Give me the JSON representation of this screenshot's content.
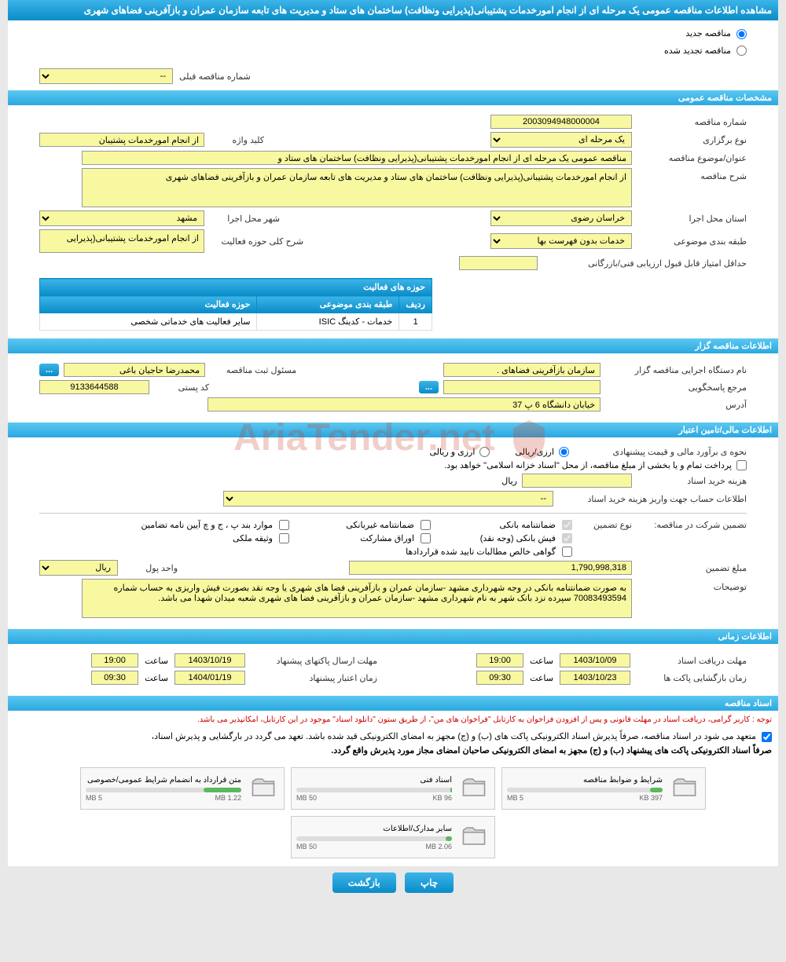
{
  "colors": {
    "header_gradient_top": "#3cb4e8",
    "header_gradient_bottom": "#0a8cc8",
    "yellow_field": "#f8f8a0",
    "page_bg": "#e8e8e8",
    "warning_text": "#cc0000",
    "progress_bar": "#5cb85c"
  },
  "page_title": "مشاهده اطلاعات مناقصه عمومی یک مرحله ای از انجام امورخدمات پشتیبانی(پذیرایی ونظافت) ساختمان های ستاد و مدیریت های تابعه سازمان عمران و بازآفرینی فضاهای شهری",
  "tender_type": {
    "new_label": "مناقصه جدید",
    "renewed_label": "مناقصه تجدید شده",
    "selected": "new"
  },
  "prev_tender": {
    "label": "شماره مناقصه قبلی",
    "value": "--"
  },
  "sections": {
    "general": {
      "header": "مشخصات مناقصه عمومی",
      "tender_number": {
        "label": "شماره مناقصه",
        "value": "2003094948000004"
      },
      "holding_type": {
        "label": "نوع برگزاری",
        "value": "یک مرحله ای"
      },
      "keyword": {
        "label": "کلید واژه",
        "value": "از انجام امورخدمات پشتیبان"
      },
      "title": {
        "label": "عنوان/موضوع مناقصه",
        "value": "مناقصه عمومی یک مرحله ای از انجام امورخدمات پشتیبانی(پذیرایی ونظافت) ساختمان های ستاد و"
      },
      "description": {
        "label": "شرح مناقصه",
        "value": "از انجام امورخدمات پشتیبانی(پذیرایی ونظافت) ساختمان های ستاد و مدیریت های تابعه سازمان عمران و بازآفرینی فضاهای شهری"
      },
      "province": {
        "label": "استان محل اجرا",
        "value": "خراسان رضوی"
      },
      "city": {
        "label": "شهر محل اجرا",
        "value": "مشهد"
      },
      "classification": {
        "label": "طبقه بندی موضوعی",
        "value": "خدمات بدون فهرست بها"
      },
      "activity_desc": {
        "label": "شرح کلی حوزه فعالیت",
        "value": "از انجام امورخدمات پشتیبانی(پذیرایی"
      },
      "min_score": {
        "label": "حداقل امتیاز قابل قبول ارزیابی فنی/بازرگانی",
        "value": ""
      },
      "activity_table": {
        "header": "حوزه های فعالیت",
        "columns": [
          "ردیف",
          "طبقه بندی موضوعی",
          "حوزه فعالیت"
        ],
        "rows": [
          {
            "num": "1",
            "class": "خدمات - کدینگ ISIC",
            "field": "سایر فعالیت های خدماتی شخصی"
          }
        ]
      }
    },
    "organizer": {
      "header": "اطلاعات مناقصه گزار",
      "agency": {
        "label": "نام دستگاه اجرایی مناقصه گزار",
        "value": "سازمان بازآفرینی فضاهای ."
      },
      "responsible": {
        "label": "مسئول ثبت مناقصه",
        "value": "محمدرضا حاجیان باغی"
      },
      "reference": {
        "label": "مرجع پاسخگویی",
        "value": ""
      },
      "postal_code": {
        "label": "کد پستی",
        "value": "9133644588"
      },
      "address": {
        "label": "آدرس",
        "value": "خیابان دانشگاه 6 پ 37"
      }
    },
    "financial": {
      "header": "اطلاعات مالی/تامین اعتبار",
      "estimate_method": {
        "label": "نحوه ی برآورد مالی و قیمت پیشنهادی",
        "options": [
          "ارزی/ریالی",
          "ارزی و ریالی"
        ],
        "selected": "ارزی/ریالی"
      },
      "treasury_note": "پرداخت تمام و یا بخشی از مبلغ مناقصه، از محل \"اسناد خزانه اسلامی\" خواهد بود.",
      "doc_cost": {
        "label": "هزینه خرید اسناد",
        "value": "",
        "unit": "ریال"
      },
      "account_info": {
        "label": "اطلاعات حساب جهت واریز هزینه خرید اسناد",
        "value": "--"
      },
      "guarantee": {
        "label": "تضمین شرکت در مناقصه:",
        "type_label": "نوع تضمین",
        "checkboxes": [
          {
            "label": "ضمانتنامه بانکی",
            "checked": true,
            "disabled": true
          },
          {
            "label": "ضمانتنامه غیربانکی",
            "checked": false
          },
          {
            "label": "موارد بند پ ، ج و چ آیین نامه تضامین",
            "checked": false
          },
          {
            "label": "فیش بانکی (وجه نقد)",
            "checked": true,
            "disabled": true
          },
          {
            "label": "اوراق مشارکت",
            "checked": false
          },
          {
            "label": "وثیقه ملکی",
            "checked": false
          },
          {
            "label": "گواهی خالص مطالبات تایید شده قراردادها",
            "checked": false
          }
        ]
      },
      "guarantee_amount": {
        "label": "مبلغ تضمین",
        "value": "1,790,998,318",
        "unit_label": "واحد پول",
        "unit": "ریال"
      },
      "notes": {
        "label": "توضیحات",
        "value": "به صورت ضمانتنامه بانکی در وجه شهرداری مشهد -سازمان عمران و بازآفرینی فضا های شهری یا وجه نقد بصورت فیش واریزی به حساب شماره 70083493594 سپرده نزد بانک شهر به نام شهرداری مشهد -سازمان عمران و بازآفرینی فضا های شهری شعبه میدان شهدا می باشد."
      }
    },
    "timing": {
      "header": "اطلاعات زمانی",
      "time_label": "ساعت",
      "doc_deadline": {
        "label": "مهلت دریافت اسناد",
        "date": "1403/10/09",
        "time": "19:00"
      },
      "envelope_deadline": {
        "label": "مهلت ارسال پاکتهای پیشنهاد",
        "date": "1403/10/19",
        "time": "19:00"
      },
      "opening": {
        "label": "زمان بازگشایی پاکت ها",
        "date": "1403/10/23",
        "time": "09:30"
      },
      "validity": {
        "label": "زمان اعتبار پیشنهاد",
        "date": "1404/01/19",
        "time": "09:30"
      }
    },
    "documents": {
      "header": "اسناد مناقصه",
      "warning": "توجه : کاربر گرامی، دریافت اسناد در مهلت قانونی و پس از افزودن فراخوان به کارتابل \"فراخوان های من\"، از طریق ستون \"دانلود اسناد\" موجود در این کارتابل، امکانپذیر می باشد.",
      "commitment": {
        "line1": "متعهد می شود در اسناد مناقصه، صرفاً پذیرش اسناد الکترونیکی پاکت های (ب) و (ج) مجهز به امضای الکترونیکی قید شده باشد. تعهد می گردد در بارگشایی و پذیرش اسناد،",
        "line2": "صرفاً اسناد الکترونیکی پاکت های پیشنهاد (ب) و (ج) مجهز به امضای الکترونیکی صاحبان امضای مجاز مورد پذیرش واقع گردد."
      },
      "files": [
        {
          "name": "شرایط و ضوابط مناقصه",
          "used": "397 KB",
          "total": "5 MB",
          "pct": 8
        },
        {
          "name": "اسناد فنی",
          "used": "96 KB",
          "total": "50 MB",
          "pct": 1
        },
        {
          "name": "متن قرارداد به انضمام شرایط عمومی/خصوصی",
          "used": "1.22 MB",
          "total": "5 MB",
          "pct": 24
        },
        {
          "name": "سایر مدارک/اطلاعات",
          "used": "2.06 MB",
          "total": "50 MB",
          "pct": 4
        }
      ]
    }
  },
  "watermark": "AriaTender.net",
  "buttons": {
    "print": "چاپ",
    "back": "بازگشت",
    "dots": "..."
  }
}
